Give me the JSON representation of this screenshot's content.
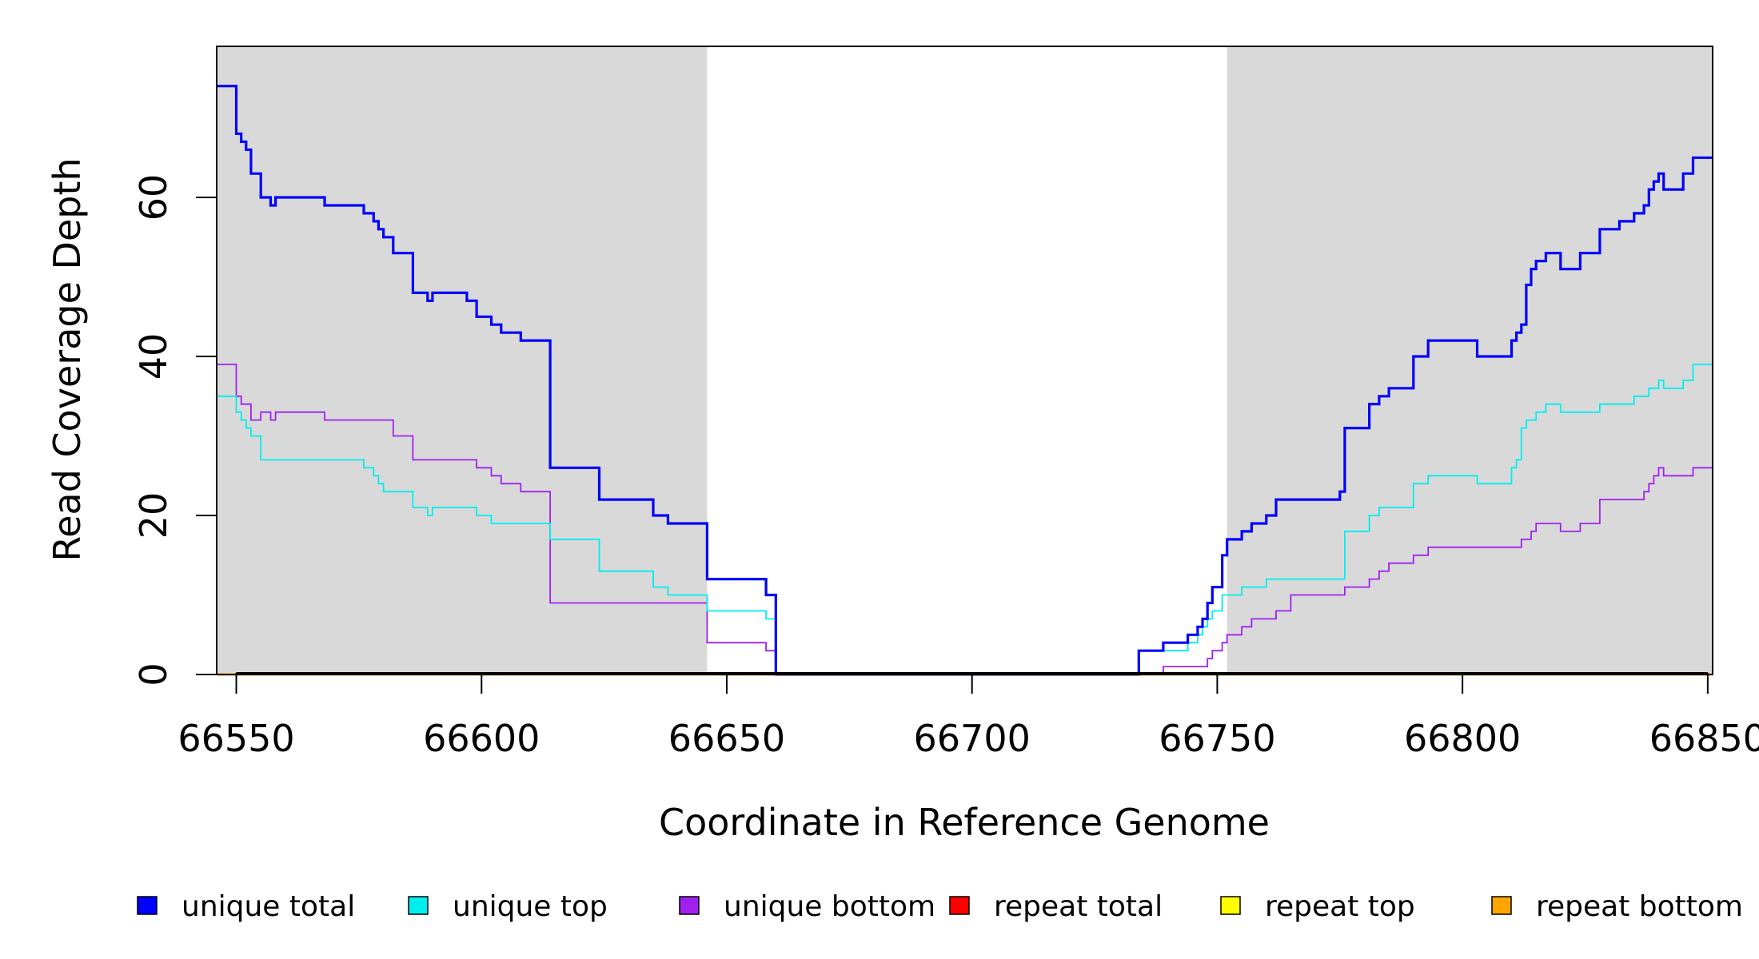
{
  "chart_data": {
    "type": "line",
    "title": "",
    "xlabel": "Coordinate in Reference Genome",
    "ylabel": "Read Coverage Depth",
    "xlim": [
      66546,
      66851
    ],
    "ylim": [
      0,
      79
    ],
    "x_ticks": [
      66550,
      66600,
      66650,
      66700,
      66750,
      66800,
      66850
    ],
    "y_ticks": [
      0,
      20,
      40,
      60
    ],
    "grid": false,
    "legend_position": "bottom",
    "shaded_regions": [
      {
        "x_start": 66546,
        "x_end": 66646,
        "color": "#d9d9d9"
      },
      {
        "x_start": 66752,
        "x_end": 66851,
        "color": "#d9d9d9"
      }
    ],
    "series": [
      {
        "name": "unique total",
        "color": "#0000ff",
        "style": "step",
        "x": [
          66546,
          66550,
          66551,
          66552,
          66553,
          66555,
          66557,
          66558,
          66568,
          66576,
          66578,
          66579,
          66580,
          66582,
          66586,
          66589,
          66590,
          66597,
          66599,
          66602,
          66604,
          66608,
          66614,
          66624,
          66635,
          66638,
          66646,
          66658,
          66660,
          66734,
          66739,
          66744,
          66746,
          66747,
          66748,
          66749,
          66751,
          66752,
          66755,
          66757,
          66760,
          66762,
          66765,
          66775,
          66776,
          66781,
          66783,
          66785,
          66790,
          66793,
          66803,
          66810,
          66811,
          66812,
          66813,
          66814,
          66815,
          66817,
          66820,
          66824,
          66828,
          66832,
          66835,
          66837,
          66838,
          66839,
          66840,
          66841,
          66842,
          66845,
          66847,
          66851
        ],
        "values": [
          74,
          68,
          67,
          66,
          63,
          60,
          59,
          60,
          59,
          58,
          57,
          56,
          55,
          53,
          48,
          47,
          48,
          47,
          45,
          44,
          43,
          42,
          26,
          22,
          20,
          19,
          12,
          10,
          0,
          3,
          4,
          5,
          6,
          7,
          9,
          11,
          15,
          17,
          18,
          19,
          20,
          22,
          22,
          23,
          31,
          34,
          35,
          36,
          40,
          42,
          40,
          42,
          43,
          44,
          49,
          51,
          52,
          53,
          51,
          53,
          56,
          57,
          58,
          59,
          61,
          62,
          63,
          61,
          61,
          63,
          65,
          65
        ]
      },
      {
        "name": "unique top",
        "color": "#00eeee",
        "style": "step",
        "x": [
          66546,
          66550,
          66551,
          66552,
          66553,
          66555,
          66557,
          66558,
          66568,
          66576,
          66578,
          66579,
          66580,
          66582,
          66586,
          66589,
          66590,
          66597,
          66599,
          66602,
          66604,
          66608,
          66614,
          66624,
          66635,
          66638,
          66646,
          66658,
          66660,
          66734,
          66739,
          66744,
          66746,
          66747,
          66748,
          66749,
          66751,
          66752,
          66755,
          66757,
          66760,
          66762,
          66765,
          66775,
          66776,
          66781,
          66783,
          66785,
          66790,
          66793,
          66803,
          66810,
          66811,
          66812,
          66813,
          66814,
          66815,
          66817,
          66820,
          66824,
          66828,
          66832,
          66835,
          66837,
          66838,
          66839,
          66840,
          66841,
          66842,
          66845,
          66847,
          66851
        ],
        "values": [
          35,
          33,
          32,
          31,
          30,
          27,
          27,
          27,
          27,
          26,
          25,
          24,
          23,
          23,
          21,
          20,
          21,
          21,
          20,
          19,
          19,
          19,
          17,
          13,
          11,
          10,
          8,
          7,
          0,
          3,
          3,
          4,
          5,
          6,
          7,
          8,
          10,
          10,
          11,
          11,
          12,
          12,
          12,
          12,
          18,
          20,
          21,
          21,
          24,
          25,
          24,
          26,
          27,
          31,
          32,
          32,
          33,
          34,
          33,
          33,
          34,
          34,
          35,
          35,
          36,
          36,
          37,
          36,
          36,
          37,
          39,
          39
        ]
      },
      {
        "name": "unique bottom",
        "color": "#a020f0",
        "style": "step",
        "x": [
          66546,
          66550,
          66551,
          66552,
          66553,
          66555,
          66557,
          66558,
          66568,
          66576,
          66578,
          66579,
          66580,
          66582,
          66586,
          66589,
          66590,
          66597,
          66599,
          66602,
          66604,
          66608,
          66614,
          66624,
          66635,
          66638,
          66646,
          66658,
          66660,
          66734,
          66739,
          66744,
          66746,
          66747,
          66748,
          66749,
          66751,
          66752,
          66755,
          66757,
          66760,
          66762,
          66765,
          66775,
          66776,
          66781,
          66783,
          66785,
          66790,
          66793,
          66803,
          66810,
          66811,
          66812,
          66813,
          66814,
          66815,
          66817,
          66820,
          66824,
          66828,
          66832,
          66835,
          66837,
          66838,
          66839,
          66840,
          66841,
          66842,
          66845,
          66847,
          66851
        ],
        "values": [
          39,
          35,
          34,
          34,
          32,
          33,
          32,
          33,
          32,
          32,
          32,
          32,
          32,
          30,
          27,
          27,
          27,
          27,
          26,
          25,
          24,
          23,
          9,
          9,
          9,
          9,
          4,
          3,
          0,
          0,
          1,
          1,
          1,
          1,
          2,
          3,
          4,
          5,
          6,
          7,
          7,
          8,
          10,
          10,
          11,
          12,
          13,
          14,
          15,
          16,
          16,
          16,
          16,
          17,
          17,
          18,
          19,
          19,
          18,
          19,
          22,
          22,
          22,
          23,
          24,
          25,
          26,
          25,
          25,
          25,
          26,
          26
        ]
      },
      {
        "name": "repeat total",
        "color": "#ff0000",
        "style": "step",
        "x": [
          66546,
          66851
        ],
        "values": [
          0,
          0
        ]
      },
      {
        "name": "repeat top",
        "color": "#ffff00",
        "style": "step",
        "x": [
          66546,
          66851
        ],
        "values": [
          0,
          0
        ]
      },
      {
        "name": "repeat bottom",
        "color": "#ffa500",
        "style": "step",
        "x": [
          66546,
          66851
        ],
        "values": [
          0,
          0
        ]
      }
    ]
  }
}
